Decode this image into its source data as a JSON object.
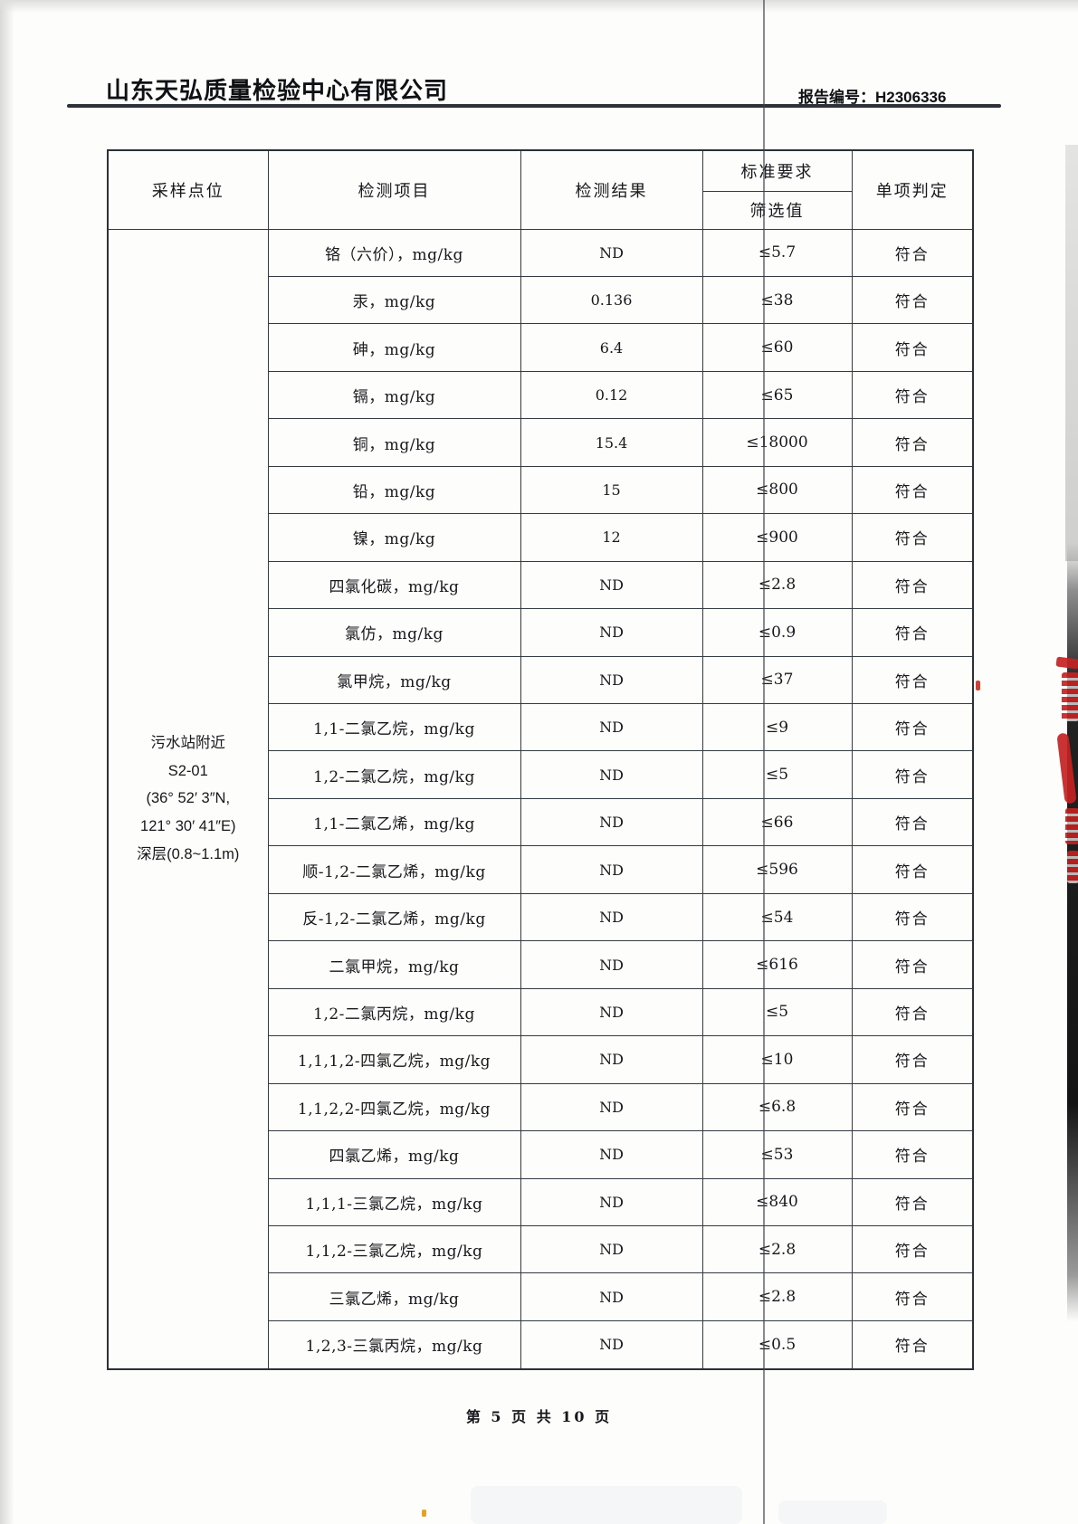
{
  "page": {
    "company": "山东天弘质量检验中心有限公司",
    "report_no_label": "报告编号：",
    "report_no": "H2306336",
    "page_footer": "第 5 页 共 10 页"
  },
  "table": {
    "headers": {
      "sampling_point": "采样点位",
      "item": "检测项目",
      "result": "检测结果",
      "standard_requirement": "标准要求",
      "screening_value": "筛选值",
      "judgment": "单项判定"
    },
    "sampling_point": {
      "lines": [
        "污水站附近",
        "S2-01",
        "(36° 52′ 3″N,",
        "121° 30′ 41″E)",
        "深层(0.8~1.1m)"
      ]
    },
    "rows": [
      {
        "item": "铬（六价），mg/kg",
        "result": "ND",
        "limit": "≤5.7",
        "judgment": "符合"
      },
      {
        "item": "汞，mg/kg",
        "result": "0.136",
        "limit": "≤38",
        "judgment": "符合"
      },
      {
        "item": "砷，mg/kg",
        "result": "6.4",
        "limit": "≤60",
        "judgment": "符合"
      },
      {
        "item": "镉，mg/kg",
        "result": "0.12",
        "limit": "≤65",
        "judgment": "符合"
      },
      {
        "item": "铜，mg/kg",
        "result": "15.4",
        "limit": "≤18000",
        "judgment": "符合"
      },
      {
        "item": "铅，mg/kg",
        "result": "15",
        "limit": "≤800",
        "judgment": "符合"
      },
      {
        "item": "镍，mg/kg",
        "result": "12",
        "limit": "≤900",
        "judgment": "符合"
      },
      {
        "item": "四氯化碳，mg/kg",
        "result": "ND",
        "limit": "≤2.8",
        "judgment": "符合"
      },
      {
        "item": "氯仿，mg/kg",
        "result": "ND",
        "limit": "≤0.9",
        "judgment": "符合"
      },
      {
        "item": "氯甲烷，mg/kg",
        "result": "ND",
        "limit": "≤37",
        "judgment": "符合"
      },
      {
        "item": "1,1-二氯乙烷，mg/kg",
        "result": "ND",
        "limit": "≤9",
        "judgment": "符合"
      },
      {
        "item": "1,2-二氯乙烷，mg/kg",
        "result": "ND",
        "limit": "≤5",
        "judgment": "符合"
      },
      {
        "item": "1,1-二氯乙烯，mg/kg",
        "result": "ND",
        "limit": "≤66",
        "judgment": "符合"
      },
      {
        "item": "顺-1,2-二氯乙烯，mg/kg",
        "result": "ND",
        "limit": "≤596",
        "judgment": "符合"
      },
      {
        "item": "反-1,2-二氯乙烯，mg/kg",
        "result": "ND",
        "limit": "≤54",
        "judgment": "符合"
      },
      {
        "item": "二氯甲烷，mg/kg",
        "result": "ND",
        "limit": "≤616",
        "judgment": "符合"
      },
      {
        "item": "1,2-二氯丙烷，mg/kg",
        "result": "ND",
        "limit": "≤5",
        "judgment": "符合"
      },
      {
        "item": "1,1,1,2-四氯乙烷，mg/kg",
        "result": "ND",
        "limit": "≤10",
        "judgment": "符合"
      },
      {
        "item": "1,1,2,2-四氯乙烷，mg/kg",
        "result": "ND",
        "limit": "≤6.8",
        "judgment": "符合"
      },
      {
        "item": "四氯乙烯，mg/kg",
        "result": "ND",
        "limit": "≤53",
        "judgment": "符合"
      },
      {
        "item": "1,1,1-三氯乙烷，mg/kg",
        "result": "ND",
        "limit": "≤840",
        "judgment": "符合"
      },
      {
        "item": "1,1,2-三氯乙烷，mg/kg",
        "result": "ND",
        "limit": "≤2.8",
        "judgment": "符合"
      },
      {
        "item": "三氯乙烯，mg/kg",
        "result": "ND",
        "limit": "≤2.8",
        "judgment": "符合"
      },
      {
        "item": "1,2,3-三氯丙烷，mg/kg",
        "result": "ND",
        "limit": "≤0.5",
        "judgment": "符合"
      }
    ]
  },
  "colors": {
    "stamp_red": "#c42222",
    "table_line": "#343a42",
    "ink": "#17181c",
    "crease": "#3e4248"
  }
}
